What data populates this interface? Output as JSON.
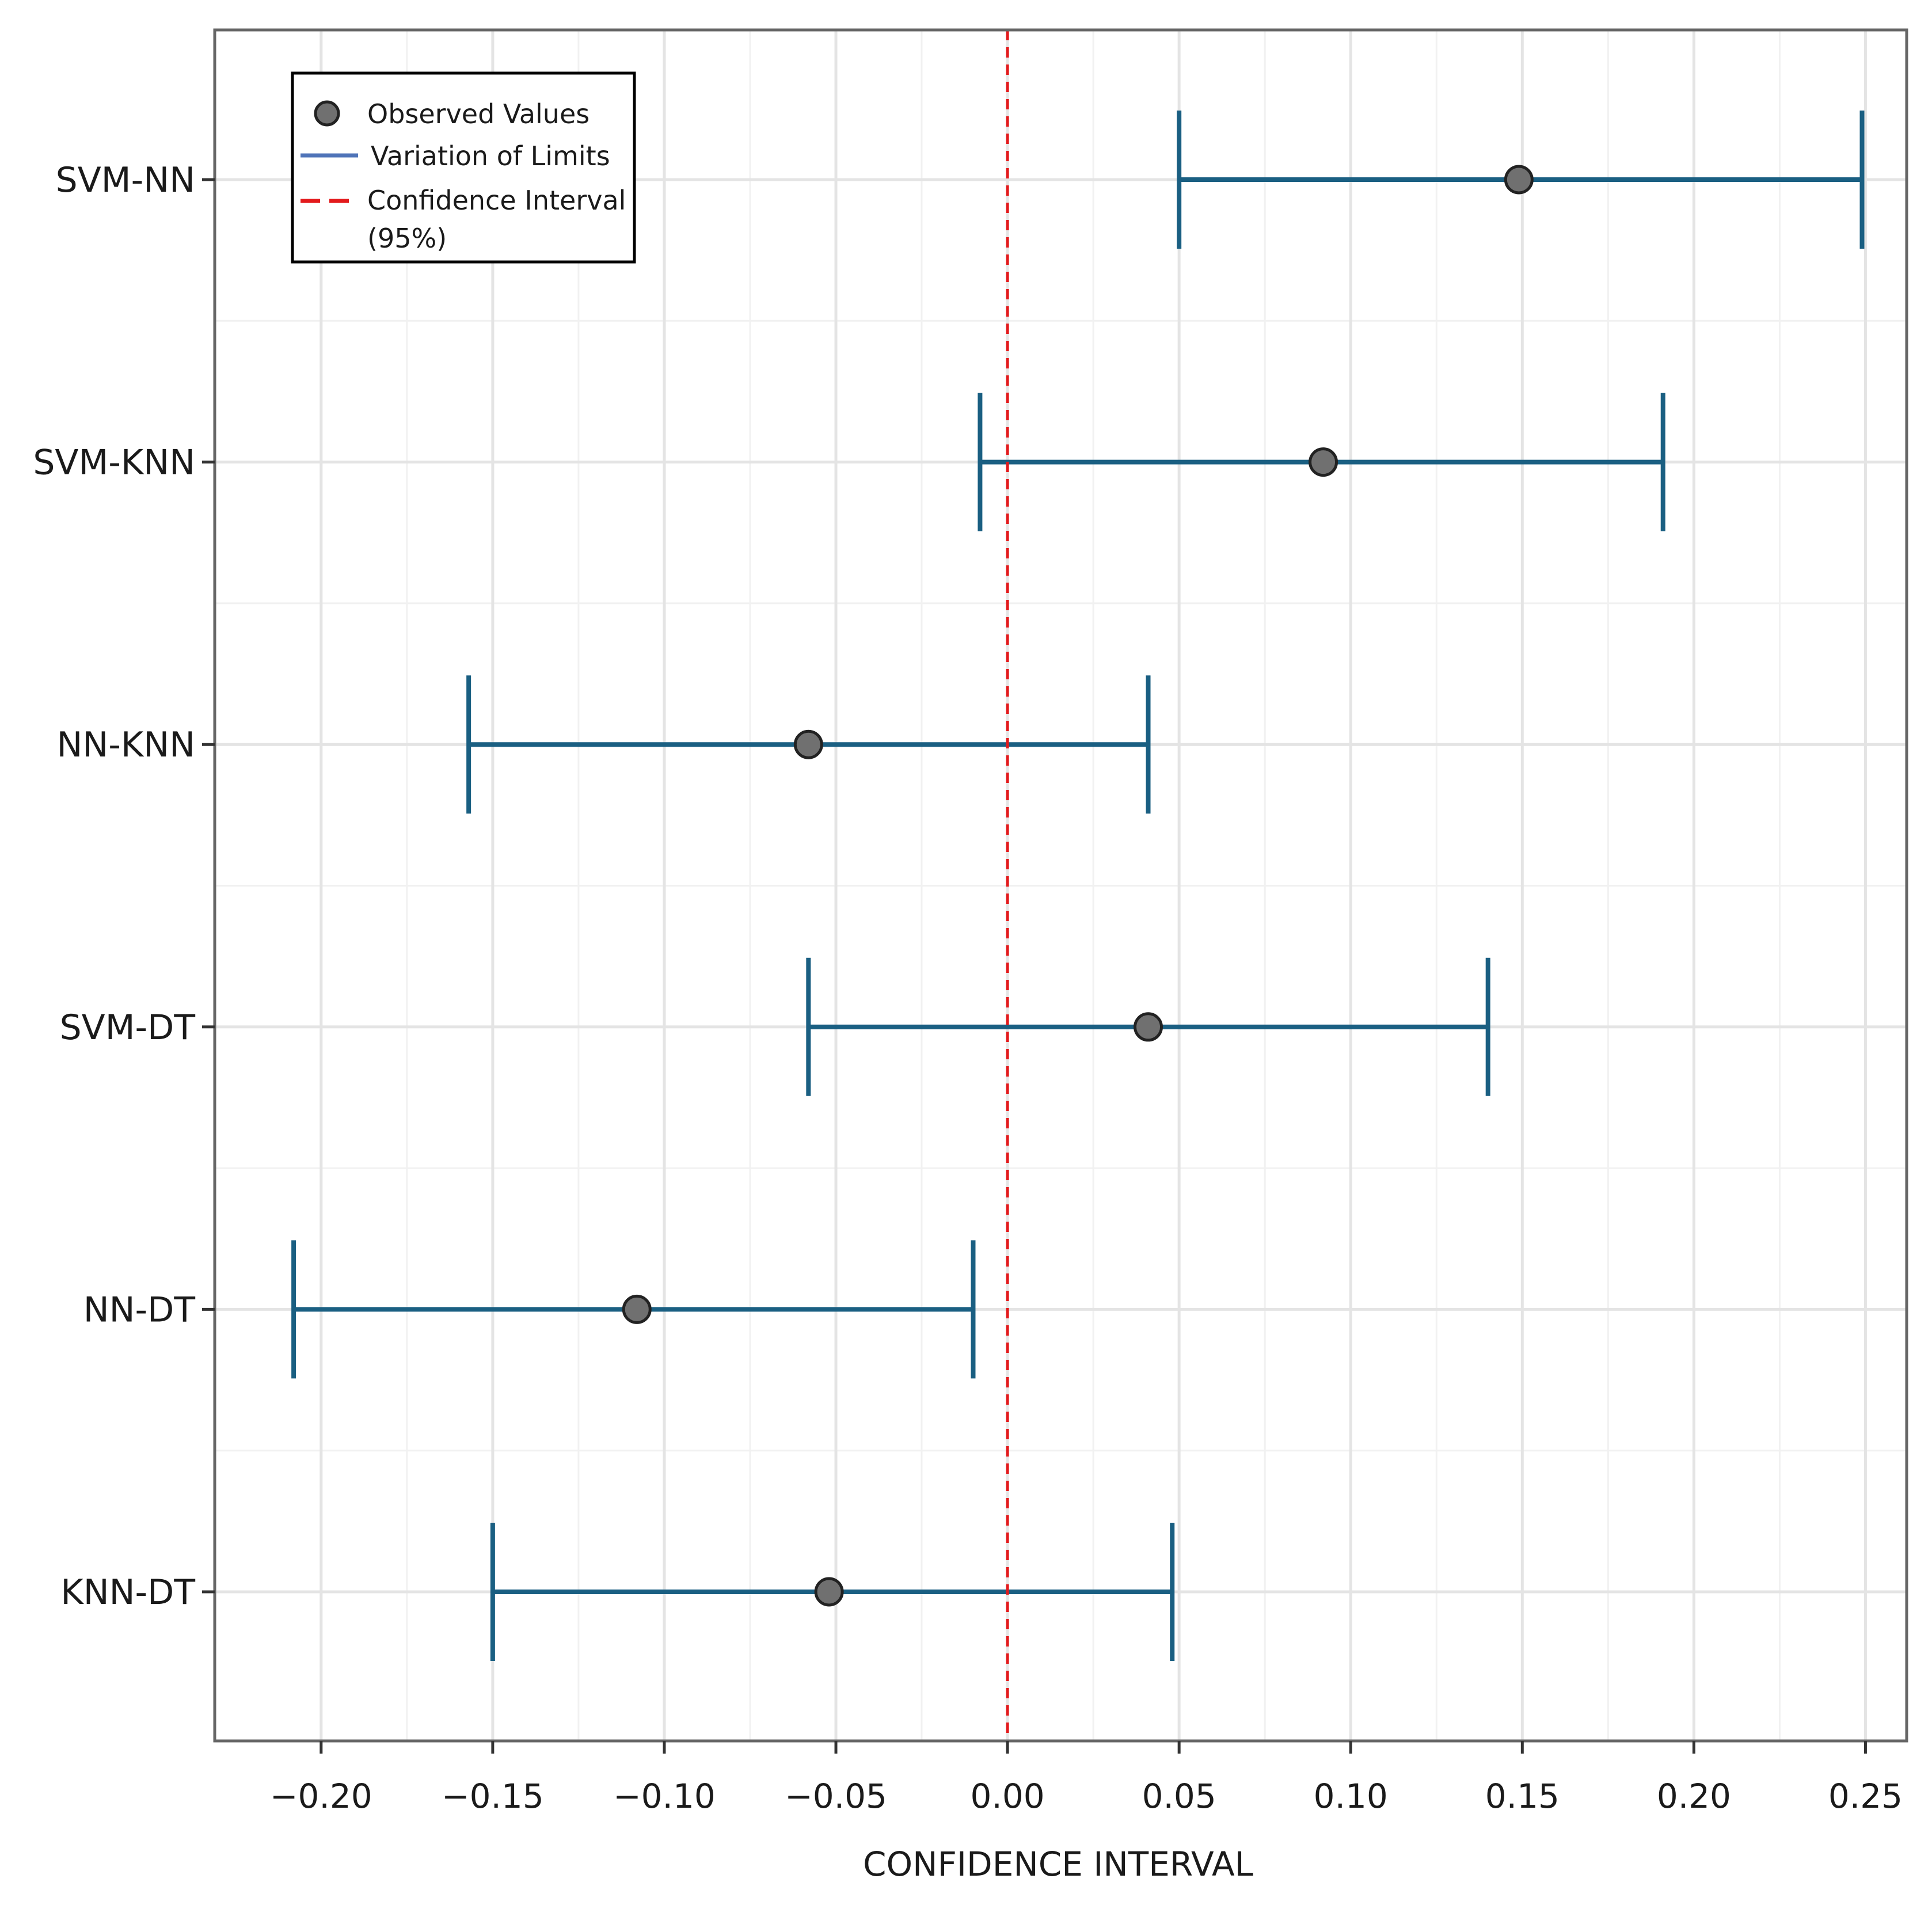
{
  "chart_data": {
    "type": "errorbar",
    "title": "",
    "xlabel": "CONFIDENCE INTERVAL",
    "ylabel": "",
    "xlim": [
      -0.231,
      0.262
    ],
    "x_ticks": [
      -0.2,
      -0.15,
      -0.1,
      -0.05,
      0.0,
      0.05,
      0.1,
      0.15,
      0.2,
      0.25
    ],
    "x_tick_labels": [
      "−0.20",
      "−0.15",
      "−0.10",
      "−0.05",
      "0.00",
      "0.05",
      "0.10",
      "0.15",
      "0.20",
      "0.25"
    ],
    "grid": true,
    "reference_line": {
      "x": 0.0,
      "color": "#e31a1c",
      "style": "dashed"
    },
    "legend": {
      "position": "top-left",
      "entries": [
        {
          "label": "Observed Values",
          "type": "point"
        },
        {
          "label": "Variation of Limits",
          "type": "line"
        },
        {
          "label": "Confidence Interval",
          "label2": "(95%)",
          "type": "dashed-line"
        }
      ]
    },
    "categories": [
      "SVM-NN",
      "SVM-KNN",
      "NN-KNN",
      "SVM-DT",
      "NN-DT",
      "KNN-DT"
    ],
    "series": [
      {
        "name": "SVM-NN",
        "lower": 0.05,
        "observed": 0.149,
        "upper": 0.249
      },
      {
        "name": "SVM-KNN",
        "lower": -0.008,
        "observed": 0.092,
        "upper": 0.191
      },
      {
        "name": "NN-KNN",
        "lower": -0.157,
        "observed": -0.058,
        "upper": 0.041
      },
      {
        "name": "SVM-DT",
        "lower": -0.058,
        "observed": 0.041,
        "upper": 0.14
      },
      {
        "name": "NN-DT",
        "lower": -0.208,
        "observed": -0.108,
        "upper": -0.01
      },
      {
        "name": "KNN-DT",
        "lower": -0.15,
        "observed": -0.052,
        "upper": 0.048
      }
    ],
    "colors": {
      "error_bar": "#1a5f82",
      "point_fill": "#707070",
      "point_stroke": "#222222",
      "reference": "#e31a1c",
      "legend_line": "#4f74b8",
      "grid_major": "#e4e4e4",
      "grid_minor": "#f1f1f1",
      "frame": "#666666"
    }
  }
}
